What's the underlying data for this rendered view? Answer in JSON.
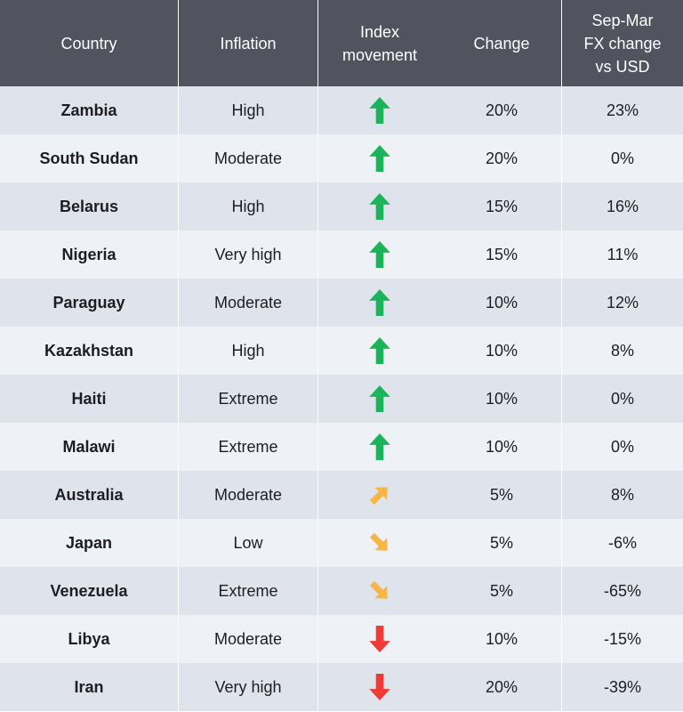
{
  "colors": {
    "header_bg": "#51545f",
    "row_bg_odd": "#dfe4ec",
    "row_bg_even": "#eef1f6",
    "arrow_up": "#1cb45a",
    "arrow_diag": "#f7b547",
    "arrow_down": "#ef3a36"
  },
  "chart_data": {
    "type": "table",
    "columns": [
      "Country",
      "Inflation",
      "Index\nmovement",
      "Change",
      "Sep-Mar\nFX change\nvs USD"
    ],
    "rows": [
      {
        "country": "Zambia",
        "inflation": "High",
        "movement": "up",
        "change": "20%",
        "fx": "23%"
      },
      {
        "country": "South Sudan",
        "inflation": "Moderate",
        "movement": "up",
        "change": "20%",
        "fx": "0%"
      },
      {
        "country": "Belarus",
        "inflation": "High",
        "movement": "up",
        "change": "15%",
        "fx": "16%"
      },
      {
        "country": "Nigeria",
        "inflation": "Very high",
        "movement": "up",
        "change": "15%",
        "fx": "11%"
      },
      {
        "country": "Paraguay",
        "inflation": "Moderate",
        "movement": "up",
        "change": "10%",
        "fx": "12%"
      },
      {
        "country": "Kazakhstan",
        "inflation": "High",
        "movement": "up",
        "change": "10%",
        "fx": "8%"
      },
      {
        "country": "Haiti",
        "inflation": "Extreme",
        "movement": "up",
        "change": "10%",
        "fx": "0%"
      },
      {
        "country": "Malawi",
        "inflation": "Extreme",
        "movement": "up",
        "change": "10%",
        "fx": "0%"
      },
      {
        "country": "Australia",
        "inflation": "Moderate",
        "movement": "up-right",
        "change": "5%",
        "fx": "8%"
      },
      {
        "country": "Japan",
        "inflation": "Low",
        "movement": "down-right",
        "change": "5%",
        "fx": "-6%"
      },
      {
        "country": "Venezuela",
        "inflation": "Extreme",
        "movement": "down-right",
        "change": "5%",
        "fx": "-65%"
      },
      {
        "country": "Libya",
        "inflation": "Moderate",
        "movement": "down",
        "change": "10%",
        "fx": "-15%"
      },
      {
        "country": "Iran",
        "inflation": "Very high",
        "movement": "down",
        "change": "20%",
        "fx": "-39%"
      }
    ]
  }
}
